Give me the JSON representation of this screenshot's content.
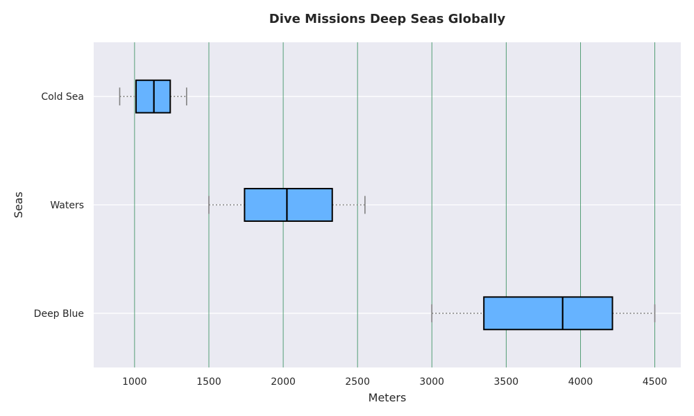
{
  "chart_data": {
    "type": "box",
    "orientation": "horizontal",
    "title": "Dive Missions Deep Seas Globally",
    "xlabel": "Meters",
    "ylabel": "Seas",
    "xlim": [
      725,
      4675
    ],
    "xticks": [
      1000,
      1500,
      2000,
      2500,
      3000,
      3500,
      4000,
      4500
    ],
    "categories": [
      "Deep Blue",
      "Waters",
      "Cold Sea"
    ],
    "boxes": [
      {
        "category": "Deep Blue",
        "min": 3000,
        "q1": 3350,
        "median": 3880,
        "q3": 4215,
        "max": 4500
      },
      {
        "category": "Waters",
        "min": 1500,
        "q1": 1740,
        "median": 2025,
        "q3": 2330,
        "max": 2550
      },
      {
        "category": "Cold Sea",
        "min": 900,
        "q1": 1010,
        "median": 1130,
        "q3": 1240,
        "max": 1350
      }
    ],
    "grid": {
      "vertical": true,
      "vertical_color": "#2e8b57",
      "horizontal": true,
      "horizontal_color": "#ffffff"
    },
    "colors": {
      "background": "#eaeaf2",
      "box_fill": "#66b3ff",
      "box_edge": "#000000",
      "whisker": "#808080"
    }
  }
}
